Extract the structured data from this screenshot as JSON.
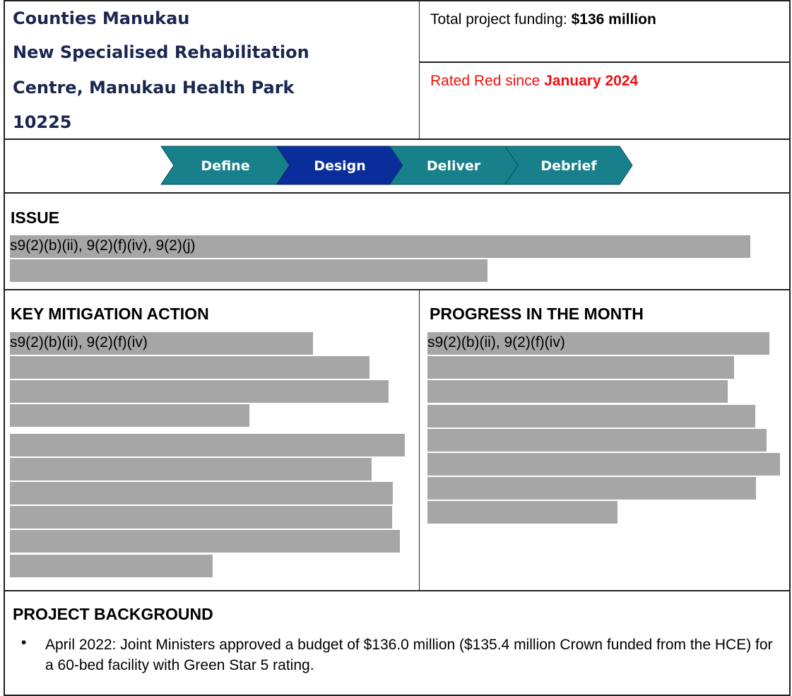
{
  "header": {
    "title_lines": [
      "Counties Manukau",
      "New Specialised Rehabilitation",
      "Centre, Manukau Health Park",
      "10225"
    ],
    "funding_label": "Total project funding: ",
    "funding_value": "$136 million",
    "rating_label": "Rated Red since ",
    "rating_value": "January 2024"
  },
  "stages": [
    "Define",
    "Design",
    "Deliver",
    "Debrief"
  ],
  "issue": {
    "heading": "ISSUE",
    "redaction": "s9(2)(b)(ii), 9(2)(f)(iv), 9(2)(j)"
  },
  "mitigation": {
    "heading": "KEY MITIGATION ACTION",
    "redaction": "s9(2)(b)(ii), 9(2)(f)(iv)"
  },
  "progress": {
    "heading": "PROGRESS IN THE MONTH",
    "redaction": "s9(2)(b)(ii), 9(2)(f)(iv)"
  },
  "background": {
    "heading": "PROJECT BACKGROUND",
    "bullets": [
      "April 2022: Joint Ministers approved a budget of $136.0 million ($135.4 million Crown funded from the HCE) for a 60-bed facility with Green Star 5 rating."
    ]
  }
}
